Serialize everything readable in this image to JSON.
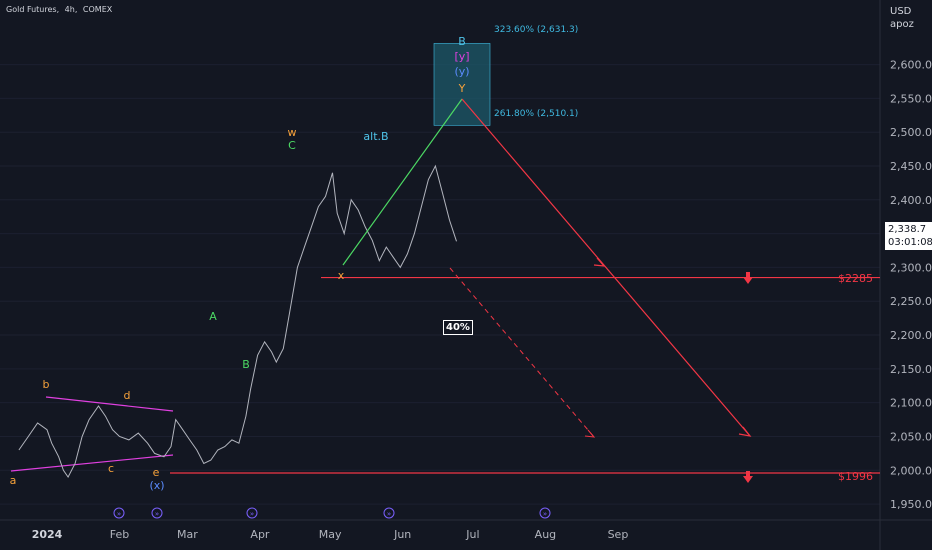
{
  "header": {
    "symbol": "Gold Futures",
    "interval": "4h",
    "exchange": "COMEX",
    "separator": ", "
  },
  "axis_unit": {
    "currency": "USD",
    "unit": "apoz"
  },
  "current_price": {
    "value": "2,338.7",
    "countdown": "03:01:08"
  },
  "colors": {
    "background": "#131722",
    "price": "#b2b5be",
    "orange": "#f7a23b",
    "green": "#4cd964",
    "cyan": "#4fc3e8",
    "blue": "#5b8cff",
    "magenta": "#e040e0",
    "red": "#f23645",
    "fib_box": "#1e5a6a"
  },
  "chart_data": {
    "type": "line",
    "series": [
      {
        "points": [
          [
            "2023-12-20",
            2030
          ],
          [
            "2023-12-24",
            2050
          ],
          [
            "2023-12-28",
            2070
          ],
          [
            "2024-01-01",
            2060
          ],
          [
            "2024-01-03",
            2040
          ],
          [
            "2024-01-06",
            2020
          ],
          [
            "2024-01-08",
            2000
          ],
          [
            "2024-01-10",
            1990
          ],
          [
            "2024-01-13",
            2010
          ],
          [
            "2024-01-16",
            2050
          ],
          [
            "2024-01-19",
            2075
          ],
          [
            "2024-01-23",
            2095
          ],
          [
            "2024-01-26",
            2080
          ],
          [
            "2024-01-29",
            2060
          ],
          [
            "2024-02-01",
            2050
          ],
          [
            "2024-02-05",
            2045
          ],
          [
            "2024-02-09",
            2055
          ],
          [
            "2024-02-13",
            2040
          ],
          [
            "2024-02-16",
            2025
          ],
          [
            "2024-02-20",
            2020
          ],
          [
            "2024-02-23",
            2035
          ],
          [
            "2024-02-25",
            2075
          ],
          [
            "2024-02-27",
            2065
          ],
          [
            "2024-03-02",
            2045
          ],
          [
            "2024-03-05",
            2030
          ],
          [
            "2024-03-08",
            2010
          ],
          [
            "2024-03-11",
            2015
          ],
          [
            "2024-03-14",
            2030
          ],
          [
            "2024-03-17",
            2035
          ],
          [
            "2024-03-20",
            2045
          ],
          [
            "2024-03-23",
            2040
          ],
          [
            "2024-03-26",
            2080
          ],
          [
            "2024-03-28",
            2120
          ],
          [
            "2024-03-31",
            2170
          ],
          [
            "2024-04-03",
            2190
          ],
          [
            "2024-04-06",
            2175
          ],
          [
            "2024-04-08",
            2160
          ],
          [
            "2024-04-11",
            2180
          ],
          [
            "2024-04-14",
            2240
          ],
          [
            "2024-04-17",
            2300
          ],
          [
            "2024-04-20",
            2330
          ],
          [
            "2024-04-23",
            2360
          ],
          [
            "2024-04-26",
            2390
          ],
          [
            "2024-04-29",
            2405
          ],
          [
            "2024-05-02",
            2440
          ],
          [
            "2024-05-04",
            2380
          ],
          [
            "2024-05-07",
            2350
          ],
          [
            "2024-05-10",
            2400
          ],
          [
            "2024-05-13",
            2385
          ],
          [
            "2024-05-16",
            2360
          ],
          [
            "2024-05-19",
            2340
          ],
          [
            "2024-05-22",
            2310
          ],
          [
            "2024-05-25",
            2330
          ],
          [
            "2024-05-28",
            2315
          ],
          [
            "2024-05-31",
            2300
          ],
          [
            "2024-06-03",
            2320
          ],
          [
            "2024-06-06",
            2350
          ],
          [
            "2024-06-09",
            2390
          ],
          [
            "2024-06-12",
            2430
          ],
          [
            "2024-06-15",
            2450
          ],
          [
            "2024-06-18",
            2410
          ],
          [
            "2024-06-21",
            2370
          ],
          [
            "2024-06-24",
            2338.7
          ]
        ]
      }
    ],
    "y_ticks": [
      "2,600.0",
      "2,550.0",
      "2,500.0",
      "2,450.0",
      "2,400.0",
      "2,350.0",
      "2,300.0",
      "2,250.0",
      "2,200.0",
      "2,150.0",
      "2,100.0",
      "2,050.0",
      "2,000.0",
      "1,950.0"
    ],
    "y_tick_values": [
      2600,
      2550,
      2500,
      2450,
      2400,
      2350,
      2300,
      2250,
      2200,
      2150,
      2100,
      2050,
      2000,
      1950
    ],
    "x_ticks": [
      {
        "label": "2024",
        "date": "2024-01-01",
        "bold": true
      },
      {
        "label": "Feb",
        "date": "2024-02-01"
      },
      {
        "label": "Mar",
        "date": "2024-03-01"
      },
      {
        "label": "Apr",
        "date": "2024-04-01"
      },
      {
        "label": "May",
        "date": "2024-05-01"
      },
      {
        "label": "Jun",
        "date": "2024-06-01"
      },
      {
        "label": "Jul",
        "date": "2024-07-01"
      },
      {
        "label": "Aug",
        "date": "2024-08-01"
      },
      {
        "label": "Sep",
        "date": "2024-09-01"
      }
    ],
    "ylim": [
      1915,
      2680
    ],
    "levels": [
      {
        "label": "$2285",
        "value": 2285
      },
      {
        "label": "$1996",
        "value": 1996
      }
    ],
    "fib_levels": [
      {
        "label": "323.60% (2,631.3)",
        "value": 2631.3
      },
      {
        "label": "261.80% (2,510.1)",
        "value": 2510.1
      }
    ],
    "wave_labels": [
      {
        "text": "a",
        "color": "orange"
      },
      {
        "text": "b",
        "color": "orange"
      },
      {
        "text": "c",
        "color": "orange"
      },
      {
        "text": "d",
        "color": "orange"
      },
      {
        "text": "e",
        "color": "orange"
      },
      {
        "text": "(x)",
        "color": "blue"
      },
      {
        "text": "A",
        "color": "green"
      },
      {
        "text": "B",
        "color": "green"
      },
      {
        "text": "w",
        "color": "orange"
      },
      {
        "text": "C",
        "color": "green"
      },
      {
        "text": "alt.B",
        "color": "cyan"
      },
      {
        "text": "x",
        "color": "orange"
      },
      {
        "text": "B",
        "color": "cyan"
      },
      {
        "text": "[y]",
        "color": "magenta"
      },
      {
        "text": "(y)",
        "color": "blue"
      },
      {
        "text": "Y",
        "color": "orange"
      }
    ],
    "probability": "40%"
  }
}
